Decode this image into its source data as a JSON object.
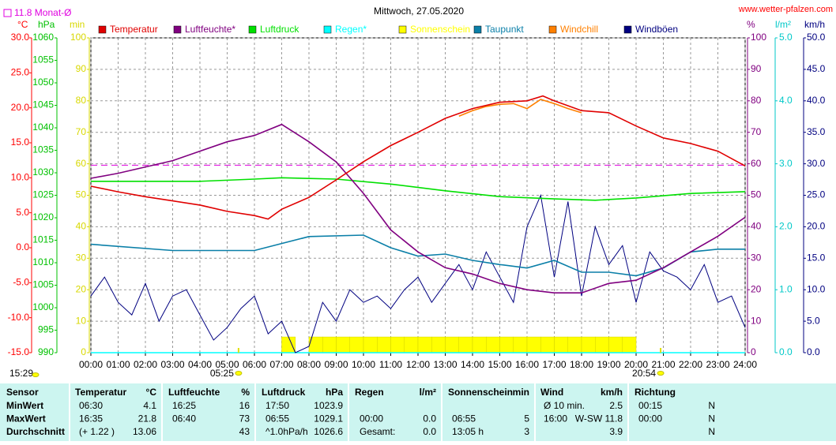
{
  "chart_data": {
    "type": "line",
    "title": "Mittwoch, 27.05.2020",
    "source": "www.wetter-pfalzen.com",
    "monthly_avg": {
      "value": 11.8,
      "label": "11.8 Monat-Ø",
      "axis": 0,
      "color": "#e000e0"
    },
    "time": "15:29",
    "sunrise": {
      "value": 5.417,
      "label": "05:25"
    },
    "sunset": {
      "value": 20.9,
      "label": "20:54"
    },
    "grid": true,
    "xlim": [
      0,
      24
    ],
    "xticks": [
      {
        "value": 0,
        "label": "00:00"
      },
      {
        "value": 1,
        "label": "01:00"
      },
      {
        "value": 2,
        "label": "02:00"
      },
      {
        "value": 3,
        "label": "03:00"
      },
      {
        "value": 4,
        "label": "04:00"
      },
      {
        "value": 5,
        "label": "05:00"
      },
      {
        "value": 6,
        "label": "06:00"
      },
      {
        "value": 7,
        "label": "07:00"
      },
      {
        "value": 8,
        "label": "08:00"
      },
      {
        "value": 9,
        "label": "09:00"
      },
      {
        "value": 10,
        "label": "10:00"
      },
      {
        "value": 11,
        "label": "11:00"
      },
      {
        "value": 12,
        "label": "12:00"
      },
      {
        "value": 13,
        "label": "13:00"
      },
      {
        "value": 14,
        "label": "14:00"
      },
      {
        "value": 15,
        "label": "15:00"
      },
      {
        "value": 16,
        "label": "16:00"
      },
      {
        "value": 17,
        "label": "17:00"
      },
      {
        "value": 18,
        "label": "18:00"
      },
      {
        "value": 19,
        "label": "19:00"
      },
      {
        "value": 20,
        "label": "20:00"
      },
      {
        "value": 21,
        "label": "21:00"
      },
      {
        "value": 22,
        "label": "22:00"
      },
      {
        "value": 23,
        "label": "23:00"
      },
      {
        "value": 24,
        "label": "24:00"
      }
    ],
    "axes": [
      {
        "unit": "°C",
        "color": "#ff0000",
        "lim": [
          -15,
          30
        ],
        "ticks": [
          {
            "value": -15,
            "label": "-15.0"
          },
          {
            "value": -10,
            "label": "-10.0"
          },
          {
            "value": -5,
            "label": "-5.0"
          },
          {
            "value": 0,
            "label": "0.0"
          },
          {
            "value": 5,
            "label": "5.0"
          },
          {
            "value": 10,
            "label": "10.0"
          },
          {
            "value": 15,
            "label": "15.0"
          },
          {
            "value": 20,
            "label": "20.0"
          },
          {
            "value": 25,
            "label": "25.0"
          },
          {
            "value": 30,
            "label": "30.0"
          }
        ]
      },
      {
        "unit": "hPa",
        "color": "#00c000",
        "lim": [
          990,
          1060
        ],
        "ticks": [
          990,
          995,
          1000,
          1005,
          1010,
          1015,
          1020,
          1025,
          1030,
          1035,
          1040,
          1045,
          1050,
          1055,
          1060
        ]
      },
      {
        "unit": "min",
        "color": "#d8d800",
        "lim": [
          0,
          100
        ],
        "ticks": [
          0,
          10,
          20,
          30,
          40,
          50,
          60,
          70,
          80,
          90,
          100
        ]
      },
      {
        "unit": "%",
        "color": "#800080",
        "lim": [
          0,
          100
        ],
        "ticks": [
          0,
          10,
          20,
          30,
          40,
          50,
          60,
          70,
          80,
          90,
          100
        ]
      },
      {
        "unit": "l/m²",
        "color": "#00c8c8",
        "lim": [
          0,
          5
        ],
        "ticks": [
          {
            "value": 0,
            "label": "0.0"
          },
          {
            "value": 1,
            "label": "1.0"
          },
          {
            "value": 2,
            "label": "2.0"
          },
          {
            "value": 3,
            "label": "3.0"
          },
          {
            "value": 4,
            "label": "4.0"
          },
          {
            "value": 5,
            "label": "5.0"
          }
        ]
      },
      {
        "unit": "km/h",
        "color": "#000080",
        "lim": [
          0,
          50
        ],
        "ticks": [
          {
            "value": 0,
            "label": "0.0"
          },
          {
            "value": 5,
            "label": "5.0"
          },
          {
            "value": 10,
            "label": "10.0"
          },
          {
            "value": 15,
            "label": "15.0"
          },
          {
            "value": 20,
            "label": "20.0"
          },
          {
            "value": 25,
            "label": "25.0"
          },
          {
            "value": 30,
            "label": "30.0"
          },
          {
            "value": 35,
            "label": "35.0"
          },
          {
            "value": 40,
            "label": "40.0"
          },
          {
            "value": 45,
            "label": "45.0"
          },
          {
            "value": 50,
            "label": "50.0"
          }
        ]
      }
    ],
    "series": [
      {
        "name": "Temperatur",
        "color": "#e00000",
        "axis": 0,
        "kind": "line",
        "x": [
          0,
          1,
          2,
          3,
          4,
          5,
          6,
          6.5,
          7,
          8,
          9,
          10,
          11,
          12,
          13,
          14,
          15,
          16,
          16.58,
          17,
          18,
          19,
          20,
          21,
          22,
          23,
          24
        ],
        "values": [
          8.8,
          8.0,
          7.3,
          6.7,
          6.1,
          5.2,
          4.6,
          4.1,
          5.5,
          7.2,
          9.7,
          12.3,
          14.6,
          16.5,
          18.5,
          19.9,
          20.8,
          21.0,
          21.7,
          21.0,
          19.6,
          19.3,
          17.4,
          15.7,
          14.9,
          13.8,
          11.7
        ]
      },
      {
        "name": "Luftfeuchte*",
        "color": "#800080",
        "axis": 3,
        "kind": "line",
        "x": [
          0,
          1,
          2,
          3,
          4,
          5,
          6,
          7,
          8,
          9,
          10,
          11,
          12,
          13,
          14,
          15,
          16,
          17,
          18,
          19,
          20,
          21,
          22,
          23,
          24
        ],
        "values": [
          55.4,
          57,
          59,
          61,
          64,
          67,
          69,
          72.5,
          67,
          60.6,
          50.6,
          39,
          32,
          27,
          25,
          22,
          20,
          19,
          19,
          22,
          23,
          27,
          32,
          37,
          43
        ]
      },
      {
        "name": "Luftdruck",
        "color": "#00e000",
        "axis": 1,
        "kind": "line",
        "x": [
          0,
          2,
          4,
          6,
          7,
          9,
          11,
          13,
          15,
          17,
          18.5,
          20,
          22,
          24
        ],
        "values": [
          1028.1,
          1028.1,
          1028.1,
          1028.6,
          1028.9,
          1028.6,
          1027.5,
          1026.0,
          1024.7,
          1024.2,
          1023.9,
          1024.4,
          1025.4,
          1025.8
        ]
      },
      {
        "name": "Regen*",
        "color": "#00ffff",
        "axis": 4,
        "kind": "line",
        "x": [
          0,
          24
        ],
        "values": [
          0,
          0
        ]
      },
      {
        "name": "Sonnenschein",
        "color": "#ffff00",
        "axis": 2,
        "kind": "bar",
        "width": 0.5,
        "x": [
          7,
          8,
          8.5,
          9,
          9.5,
          10,
          10.5,
          11,
          11.5,
          12,
          12.5,
          13,
          13.5,
          14,
          14.5,
          15,
          15.5,
          16,
          16.5,
          17,
          17.5,
          18,
          18.5,
          19,
          19.5
        ],
        "values": [
          5,
          5,
          5,
          5,
          5,
          5,
          5,
          5,
          5,
          5,
          5,
          5,
          5,
          5,
          5,
          5,
          5,
          5,
          5,
          5,
          5,
          5,
          5,
          5,
          5
        ]
      },
      {
        "name": "Taupunkt",
        "color": "#0a7fa8",
        "axis": 0,
        "kind": "line",
        "x": [
          0,
          3,
          6,
          8,
          10,
          11,
          12,
          13,
          14,
          15,
          16,
          17,
          18,
          19,
          20,
          21,
          22,
          23,
          24
        ],
        "values": [
          0.5,
          -0.4,
          -0.4,
          1.6,
          1.8,
          0,
          -1.2,
          -0.9,
          -1.8,
          -2.4,
          -2.9,
          -1.8,
          -3.5,
          -3.5,
          -4,
          -2.9,
          -0.6,
          -0.2,
          -0.2
        ]
      },
      {
        "name": "Windchill",
        "color": "#ff8000",
        "axis": 0,
        "kind": "line",
        "x": [
          13.5,
          14,
          14.5,
          15,
          15.5,
          16,
          16.5,
          17,
          17.5,
          18
        ],
        "values": [
          18.8,
          19.6,
          20.2,
          20.5,
          20.6,
          19.9,
          21.2,
          20.6,
          19.9,
          19.3
        ]
      },
      {
        "name": "Windböen",
        "color": "#000080",
        "axis": 5,
        "kind": "line",
        "x": [
          0,
          0.5,
          1,
          1.5,
          2,
          2.5,
          3,
          3.5,
          4,
          4.5,
          5,
          5.5,
          6,
          6.5,
          7,
          7.5,
          8,
          8.5,
          9,
          9.5,
          10,
          10.5,
          11,
          11.5,
          12,
          12.5,
          13,
          13.5,
          14,
          14.5,
          15,
          15.5,
          16,
          16.5,
          17,
          17.5,
          18,
          18.5,
          19,
          19.5,
          20,
          20.5,
          21,
          21.5,
          22,
          22.5,
          23,
          23.5,
          24
        ],
        "values": [
          9,
          12,
          8,
          6,
          11,
          5,
          9,
          10,
          6,
          2,
          4,
          7,
          9,
          3,
          5,
          0,
          1,
          8,
          5,
          10,
          8,
          9,
          7,
          10,
          12,
          8,
          11,
          14,
          10,
          16,
          12,
          8,
          20,
          25,
          12,
          24,
          9,
          20,
          14,
          17,
          8,
          16,
          13,
          12,
          10,
          14,
          8,
          9,
          4
        ]
      }
    ]
  },
  "table": {
    "header": [
      "Sensor",
      "Temperatur",
      "°C",
      "Luftfeuchte",
      "%",
      "Luftdruck",
      "hPa",
      "Regen",
      "l/m²",
      "Sonnenschein",
      "min",
      "Wind",
      "km/h",
      "Richtung",
      null
    ],
    "rows": [
      [
        "MinWert",
        "06:30",
        "4.1",
        "16:25",
        "16",
        "17:50",
        "1023.9",
        null,
        null,
        null,
        null,
        "Ø 10 min.",
        "2.5",
        "00:15",
        "N"
      ],
      [
        "MaxWert",
        "16:35",
        "21.8",
        "06:40",
        "73",
        "06:55",
        "1029.1",
        "00:00",
        "0.0",
        "06:55",
        "5",
        "16:00",
        "W-SW 11.8",
        "00:00",
        "N"
      ],
      [
        "Durchschnitt",
        "(+ 1.22 )",
        "13.06",
        null,
        "43",
        "^1.0hPa/h",
        "1026.6",
        "Gesamt:",
        "0.0",
        "13:05 h",
        "3",
        null,
        "3.9",
        null,
        "N"
      ]
    ]
  }
}
